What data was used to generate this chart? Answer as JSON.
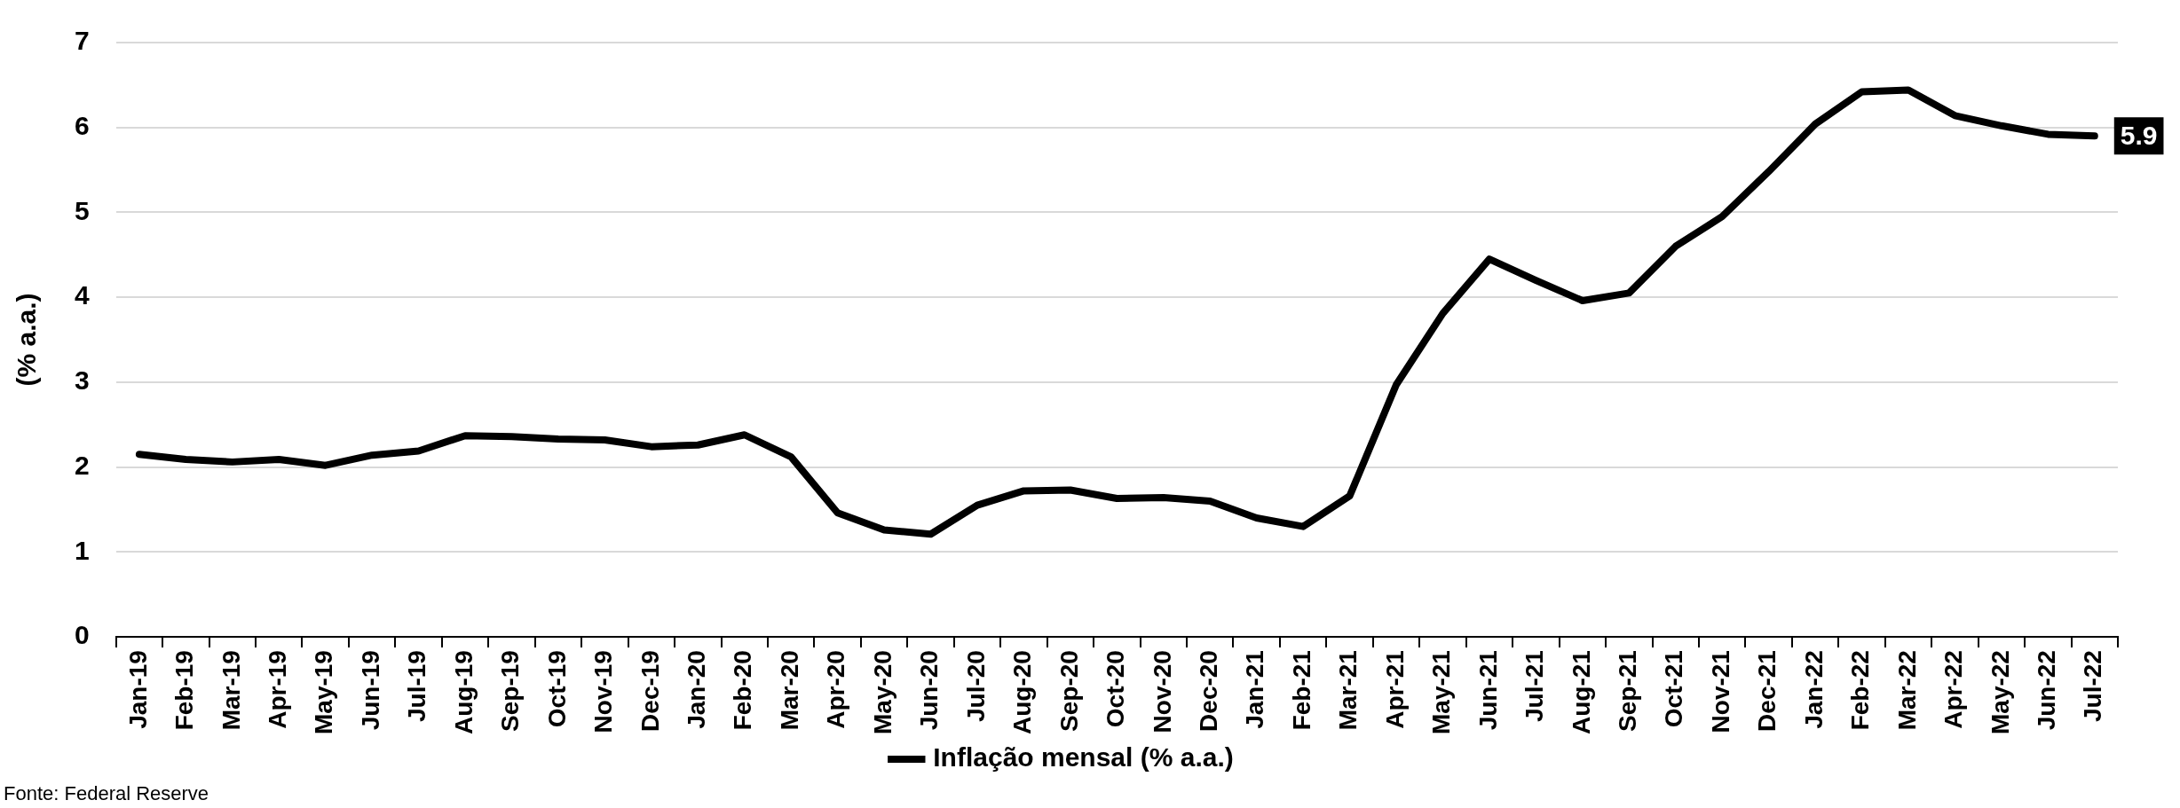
{
  "chart_data": {
    "type": "line",
    "ylabel": "(% a.a.)",
    "categories": [
      "Jan-19",
      "Feb-19",
      "Mar-19",
      "Apr-19",
      "May-19",
      "Jun-19",
      "Jul-19",
      "Aug-19",
      "Sep-19",
      "Oct-19",
      "Nov-19",
      "Dec-19",
      "Jan-20",
      "Feb-20",
      "Mar-20",
      "Apr-20",
      "May-20",
      "Jun-20",
      "Jul-20",
      "Aug-20",
      "Sep-20",
      "Oct-20",
      "Nov-20",
      "Dec-20",
      "Jan-21",
      "Feb-21",
      "Mar-21",
      "Apr-21",
      "May-21",
      "Jun-21",
      "Jul-21",
      "Aug-21",
      "Sep-21",
      "Oct-21",
      "Nov-21",
      "Dec-21",
      "Jan-22",
      "Feb-22",
      "Mar-22",
      "Apr-22",
      "May-22",
      "Jun-22",
      "Jul-22"
    ],
    "series": [
      {
        "name": "Inflação mensal (% a.a.)",
        "color": "#000000",
        "values": [
          2.15,
          2.09,
          2.06,
          2.09,
          2.02,
          2.14,
          2.19,
          2.37,
          2.36,
          2.33,
          2.32,
          2.24,
          2.26,
          2.38,
          2.12,
          1.46,
          1.26,
          1.21,
          1.55,
          1.72,
          1.73,
          1.63,
          1.64,
          1.6,
          1.4,
          1.3,
          1.66,
          2.97,
          3.81,
          4.45,
          4.2,
          3.96,
          4.05,
          4.6,
          4.95,
          5.48,
          6.04,
          6.42,
          6.44,
          6.14,
          6.02,
          5.92,
          5.9
        ],
        "value_labels": [
          null,
          null,
          null,
          null,
          null,
          null,
          null,
          null,
          null,
          null,
          null,
          null,
          null,
          null,
          null,
          null,
          null,
          null,
          null,
          null,
          null,
          null,
          null,
          null,
          null,
          null,
          null,
          null,
          null,
          null,
          null,
          null,
          null,
          null,
          null,
          null,
          null,
          null,
          null,
          null,
          null,
          null,
          "5.9"
        ]
      }
    ],
    "ylim": [
      0,
      7
    ],
    "yticks": [
      0,
      1,
      2,
      3,
      4,
      5,
      6,
      7
    ],
    "grid": "y",
    "legend": "bottom",
    "marker": "none",
    "line_style": "solid",
    "annotations": [
      "Fonte: Federal Reserve"
    ]
  }
}
